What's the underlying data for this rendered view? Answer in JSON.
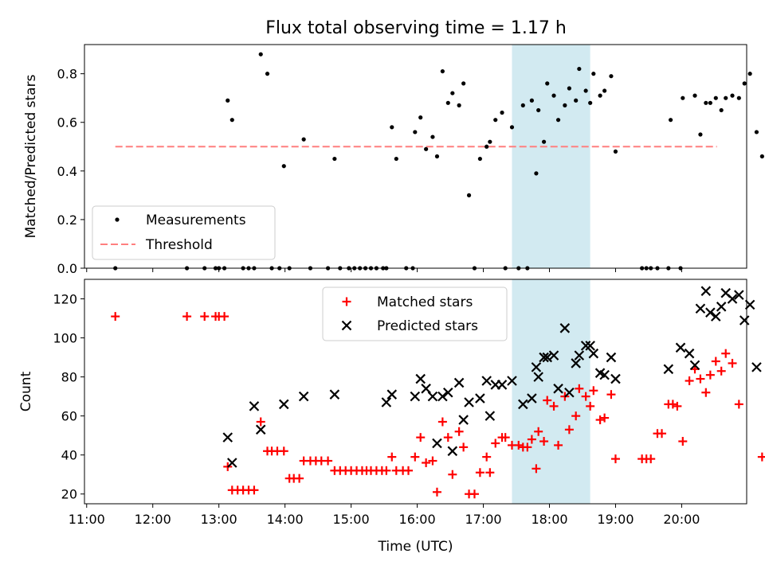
{
  "title": "Flux total observing time = 1.17 h",
  "colors": {
    "measurement": "#000000",
    "threshold": "#ff7f7f",
    "matched": "#ff0000",
    "predicted": "#000000",
    "highlight_band": "#add8e6"
  },
  "chart_data": [
    {
      "type": "scatter",
      "panel": "top",
      "ylabel": "Matched/Predicted stars",
      "xlabel": "",
      "xlim": [
        "10:58",
        "20:59"
      ],
      "ylim": [
        0,
        0.92
      ],
      "yticks": [
        0.0,
        0.2,
        0.4,
        0.6,
        0.8
      ],
      "ytick_labels": [
        "0.0",
        "0.2",
        "0.4",
        "0.6",
        "0.8"
      ],
      "legend": {
        "placement": "lower-left",
        "entries": [
          "Measurements",
          "Threshold"
        ]
      },
      "highlight_band": {
        "from": "17:26",
        "to": "18:37"
      },
      "threshold": {
        "name": "Threshold",
        "value": 0.5,
        "from": "11:26",
        "to": "20:32"
      },
      "series": [
        {
          "name": "Measurements",
          "marker": "dot",
          "points": [
            [
              "11:26",
              0.0
            ],
            [
              "12:31",
              0.0
            ],
            [
              "12:47",
              0.0
            ],
            [
              "12:57",
              0.0
            ],
            [
              "13:00",
              0.0
            ],
            [
              "13:05",
              0.0
            ],
            [
              "13:08",
              0.69
            ],
            [
              "13:12",
              0.61
            ],
            [
              "13:22",
              0.0
            ],
            [
              "13:27",
              0.0
            ],
            [
              "13:32",
              0.0
            ],
            [
              "13:38",
              0.88
            ],
            [
              "13:44",
              0.8
            ],
            [
              "13:48",
              0.0
            ],
            [
              "13:55",
              0.0
            ],
            [
              "13:59",
              0.42
            ],
            [
              "14:04",
              0.0
            ],
            [
              "14:17",
              0.53
            ],
            [
              "14:23",
              0.0
            ],
            [
              "14:39",
              0.0
            ],
            [
              "14:45",
              0.45
            ],
            [
              "14:50",
              0.0
            ],
            [
              "14:58",
              0.0
            ],
            [
              "15:03",
              0.0
            ],
            [
              "15:08",
              0.0
            ],
            [
              "15:13",
              0.0
            ],
            [
              "15:18",
              0.0
            ],
            [
              "15:23",
              0.0
            ],
            [
              "15:29",
              0.0
            ],
            [
              "15:32",
              0.0
            ],
            [
              "15:37",
              0.58
            ],
            [
              "15:41",
              0.45
            ],
            [
              "15:50",
              0.0
            ],
            [
              "15:56",
              0.0
            ],
            [
              "15:58",
              0.56
            ],
            [
              "16:03",
              0.62
            ],
            [
              "16:08",
              0.49
            ],
            [
              "16:14",
              0.54
            ],
            [
              "16:18",
              0.46
            ],
            [
              "16:23",
              0.81
            ],
            [
              "16:28",
              0.68
            ],
            [
              "16:32",
              0.72
            ],
            [
              "16:38",
              0.67
            ],
            [
              "16:42",
              0.76
            ],
            [
              "16:47",
              0.3
            ],
            [
              "16:52",
              0.0
            ],
            [
              "16:57",
              0.45
            ],
            [
              "17:03",
              0.5
            ],
            [
              "17:06",
              0.52
            ],
            [
              "17:11",
              0.61
            ],
            [
              "17:17",
              0.64
            ],
            [
              "17:20",
              0.0
            ],
            [
              "17:26",
              0.58
            ],
            [
              "17:32",
              0.0
            ],
            [
              "17:36",
              0.67
            ],
            [
              "17:40",
              0.0
            ],
            [
              "17:44",
              0.69
            ],
            [
              "17:48",
              0.39
            ],
            [
              "17:50",
              0.65
            ],
            [
              "17:55",
              0.52
            ],
            [
              "17:58",
              0.76
            ],
            [
              "18:04",
              0.71
            ],
            [
              "18:08",
              0.61
            ],
            [
              "18:14",
              0.67
            ],
            [
              "18:18",
              0.74
            ],
            [
              "18:24",
              0.69
            ],
            [
              "18:27",
              0.82
            ],
            [
              "18:33",
              0.73
            ],
            [
              "18:37",
              0.68
            ],
            [
              "18:40",
              0.8
            ],
            [
              "18:46",
              0.71
            ],
            [
              "18:50",
              0.73
            ],
            [
              "18:56",
              0.79
            ],
            [
              "19:00",
              0.48
            ],
            [
              "19:24",
              0.0
            ],
            [
              "19:28",
              0.0
            ],
            [
              "19:32",
              0.0
            ],
            [
              "19:38",
              0.0
            ],
            [
              "19:48",
              0.0
            ],
            [
              "19:59",
              0.0
            ],
            [
              "19:50",
              0.61
            ],
            [
              "20:01",
              0.7
            ],
            [
              "20:12",
              0.71
            ],
            [
              "20:17",
              0.55
            ],
            [
              "20:22",
              0.68
            ],
            [
              "20:26",
              0.68
            ],
            [
              "20:31",
              0.7
            ],
            [
              "20:36",
              0.65
            ],
            [
              "20:40",
              0.7
            ],
            [
              "20:46",
              0.71
            ],
            [
              "20:52",
              0.7
            ],
            [
              "20:57",
              0.76
            ],
            [
              "21:02",
              0.8
            ],
            [
              "21:08",
              0.56
            ],
            [
              "21:13",
              0.46
            ]
          ]
        }
      ]
    },
    {
      "type": "scatter",
      "panel": "bottom",
      "xlabel": "Time (UTC)",
      "ylabel": "Count",
      "xlim": [
        "10:58",
        "20:59"
      ],
      "ylim": [
        15,
        130
      ],
      "yticks": [
        20,
        40,
        60,
        80,
        100,
        120
      ],
      "xticks": [
        "11:00",
        "12:00",
        "13:00",
        "14:00",
        "15:00",
        "16:00",
        "17:00",
        "18:00",
        "19:00",
        "20:00"
      ],
      "legend": {
        "placement": "top-center",
        "entries": [
          "Matched stars",
          "Predicted stars"
        ]
      },
      "highlight_band": {
        "from": "17:26",
        "to": "18:37"
      },
      "series": [
        {
          "name": "Matched stars",
          "marker": "plus",
          "points": [
            [
              "11:26",
              111
            ],
            [
              "12:31",
              111
            ],
            [
              "12:47",
              111
            ],
            [
              "12:57",
              111
            ],
            [
              "13:00",
              111
            ],
            [
              "13:05",
              111
            ],
            [
              "13:08",
              34
            ],
            [
              "13:12",
              22
            ],
            [
              "13:17",
              22
            ],
            [
              "13:22",
              22
            ],
            [
              "13:27",
              22
            ],
            [
              "13:32",
              22
            ],
            [
              "13:38",
              57
            ],
            [
              "13:44",
              42
            ],
            [
              "13:48",
              42
            ],
            [
              "13:53",
              42
            ],
            [
              "13:59",
              42
            ],
            [
              "14:04",
              28
            ],
            [
              "14:08",
              28
            ],
            [
              "14:13",
              28
            ],
            [
              "14:17",
              37
            ],
            [
              "14:23",
              37
            ],
            [
              "14:28",
              37
            ],
            [
              "14:33",
              37
            ],
            [
              "14:39",
              37
            ],
            [
              "14:45",
              32
            ],
            [
              "14:50",
              32
            ],
            [
              "14:55",
              32
            ],
            [
              "15:00",
              32
            ],
            [
              "15:05",
              32
            ],
            [
              "15:10",
              32
            ],
            [
              "15:14",
              32
            ],
            [
              "15:18",
              32
            ],
            [
              "15:23",
              32
            ],
            [
              "15:28",
              32
            ],
            [
              "15:32",
              32
            ],
            [
              "15:37",
              39
            ],
            [
              "15:41",
              32
            ],
            [
              "15:47",
              32
            ],
            [
              "15:52",
              32
            ],
            [
              "15:58",
              39
            ],
            [
              "16:03",
              49
            ],
            [
              "16:08",
              36
            ],
            [
              "16:14",
              37
            ],
            [
              "16:18",
              21
            ],
            [
              "16:23",
              57
            ],
            [
              "16:28",
              49
            ],
            [
              "16:32",
              30
            ],
            [
              "16:38",
              52
            ],
            [
              "16:42",
              44
            ],
            [
              "16:47",
              20
            ],
            [
              "16:52",
              20
            ],
            [
              "16:57",
              31
            ],
            [
              "17:03",
              39
            ],
            [
              "17:06",
              31
            ],
            [
              "17:11",
              46
            ],
            [
              "17:17",
              49
            ],
            [
              "17:20",
              49
            ],
            [
              "17:26",
              45
            ],
            [
              "17:32",
              45
            ],
            [
              "17:36",
              44
            ],
            [
              "17:40",
              44
            ],
            [
              "17:44",
              48
            ],
            [
              "17:48",
              33
            ],
            [
              "17:50",
              52
            ],
            [
              "17:55",
              47
            ],
            [
              "17:58",
              68
            ],
            [
              "18:04",
              65
            ],
            [
              "18:08",
              45
            ],
            [
              "18:14",
              70
            ],
            [
              "18:18",
              53
            ],
            [
              "18:24",
              60
            ],
            [
              "18:27",
              74
            ],
            [
              "18:33",
              70
            ],
            [
              "18:37",
              65
            ],
            [
              "18:40",
              73
            ],
            [
              "18:46",
              58
            ],
            [
              "18:50",
              59
            ],
            [
              "18:56",
              71
            ],
            [
              "19:00",
              38
            ],
            [
              "19:24",
              38
            ],
            [
              "19:28",
              38
            ],
            [
              "19:32",
              38
            ],
            [
              "19:38",
              51
            ],
            [
              "19:42",
              51
            ],
            [
              "19:48",
              66
            ],
            [
              "19:52",
              66
            ],
            [
              "19:56",
              65
            ],
            [
              "20:01",
              47
            ],
            [
              "20:07",
              78
            ],
            [
              "20:12",
              84
            ],
            [
              "20:17",
              79
            ],
            [
              "20:22",
              72
            ],
            [
              "20:26",
              81
            ],
            [
              "20:31",
              88
            ],
            [
              "20:36",
              83
            ],
            [
              "20:40",
              92
            ],
            [
              "20:46",
              87
            ],
            [
              "20:52",
              66
            ],
            [
              "21:13",
              39
            ]
          ]
        },
        {
          "name": "Predicted stars",
          "marker": "x",
          "points": [
            [
              "13:08",
              49
            ],
            [
              "13:12",
              36
            ],
            [
              "13:32",
              65
            ],
            [
              "13:38",
              53
            ],
            [
              "13:59",
              66
            ],
            [
              "14:17",
              70
            ],
            [
              "14:45",
              71
            ],
            [
              "15:32",
              67
            ],
            [
              "15:37",
              71
            ],
            [
              "15:58",
              70
            ],
            [
              "16:03",
              79
            ],
            [
              "16:08",
              74
            ],
            [
              "16:14",
              70
            ],
            [
              "16:18",
              46
            ],
            [
              "16:23",
              70
            ],
            [
              "16:28",
              72
            ],
            [
              "16:32",
              42
            ],
            [
              "16:38",
              77
            ],
            [
              "16:42",
              58
            ],
            [
              "16:47",
              67
            ],
            [
              "16:57",
              69
            ],
            [
              "17:03",
              78
            ],
            [
              "17:06",
              60
            ],
            [
              "17:11",
              76
            ],
            [
              "17:17",
              76
            ],
            [
              "17:26",
              78
            ],
            [
              "17:36",
              66
            ],
            [
              "17:44",
              69
            ],
            [
              "17:48",
              85
            ],
            [
              "17:50",
              80
            ],
            [
              "17:55",
              90
            ],
            [
              "17:58",
              90
            ],
            [
              "18:04",
              91
            ],
            [
              "18:08",
              74
            ],
            [
              "18:14",
              105
            ],
            [
              "18:18",
              72
            ],
            [
              "18:24",
              87
            ],
            [
              "18:27",
              91
            ],
            [
              "18:33",
              96
            ],
            [
              "18:37",
              96
            ],
            [
              "18:40",
              92
            ],
            [
              "18:46",
              82
            ],
            [
              "18:50",
              81
            ],
            [
              "18:56",
              90
            ],
            [
              "19:00",
              79
            ],
            [
              "19:48",
              84
            ],
            [
              "19:59",
              95
            ],
            [
              "20:07",
              92
            ],
            [
              "20:12",
              86
            ],
            [
              "20:17",
              115
            ],
            [
              "20:22",
              124
            ],
            [
              "20:26",
              113
            ],
            [
              "20:31",
              111
            ],
            [
              "20:36",
              116
            ],
            [
              "20:40",
              123
            ],
            [
              "20:46",
              120
            ],
            [
              "20:52",
              122
            ],
            [
              "20:57",
              109
            ],
            [
              "21:02",
              117
            ],
            [
              "21:08",
              85
            ]
          ]
        }
      ]
    }
  ]
}
